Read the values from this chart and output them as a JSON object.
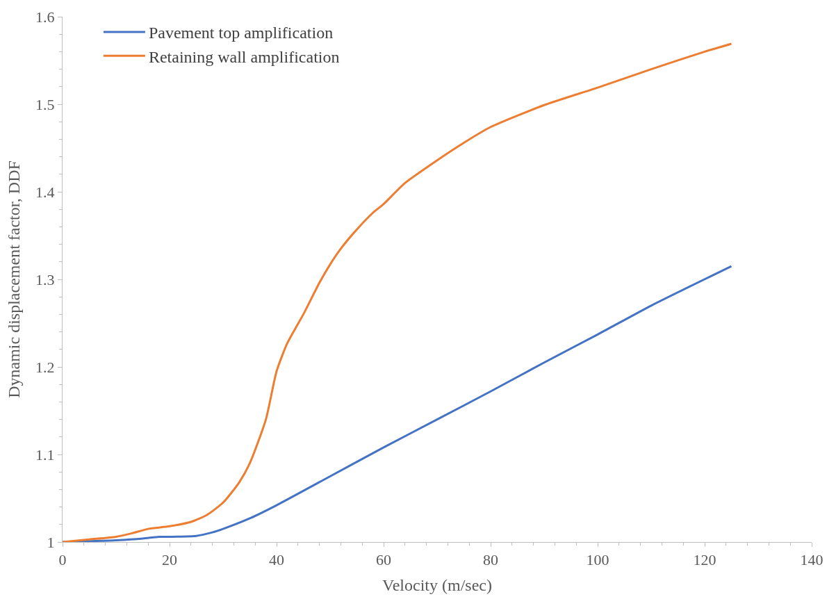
{
  "chart_data": {
    "type": "line",
    "xlabel": "Velocity (m/sec)",
    "ylabel": "Dynamic displacement factor, DDF",
    "xlim": [
      0,
      140
    ],
    "xticks": [
      0,
      20,
      40,
      60,
      80,
      100,
      120,
      140
    ],
    "ylim": [
      1,
      1.6
    ],
    "yticks": [
      {
        "value": 1,
        "label": "1"
      },
      1.1,
      1.2,
      1.3,
      1.4,
      1.5,
      1.6
    ],
    "legend": "top left",
    "marker": "none",
    "line_style": "solid",
    "series": [
      {
        "name": "Pavement top amplification",
        "color": "#4472c4",
        "x": [
          0,
          5,
          10,
          15,
          18,
          20,
          25,
          28,
          30,
          35,
          40,
          50,
          60,
          70,
          80,
          90,
          100,
          110,
          125
        ],
        "values": [
          1,
          1.001,
          1.002,
          1.004,
          1.006,
          1.006,
          1.007,
          1.011,
          1.015,
          1.027,
          1.042,
          1.075,
          1.108,
          1.14,
          1.172,
          1.205,
          1.237,
          1.27,
          1.315
        ]
      },
      {
        "name": "Retaining wall amplification",
        "color": "#ed7d31",
        "x": [
          0,
          5,
          10,
          13,
          16,
          20,
          24,
          27,
          30,
          33,
          35,
          38,
          40,
          42,
          45,
          48,
          50,
          52,
          55,
          58,
          60,
          64,
          70,
          75,
          80,
          90,
          100,
          110,
          120,
          125
        ],
        "values": [
          1,
          1.003,
          1.006,
          1.01,
          1.015,
          1.018,
          1.023,
          1.031,
          1.045,
          1.068,
          1.09,
          1.14,
          1.195,
          1.227,
          1.26,
          1.296,
          1.317,
          1.335,
          1.357,
          1.376,
          1.386,
          1.41,
          1.436,
          1.456,
          1.474,
          1.499,
          1.519,
          1.54,
          1.56,
          1.569
        ]
      }
    ]
  }
}
